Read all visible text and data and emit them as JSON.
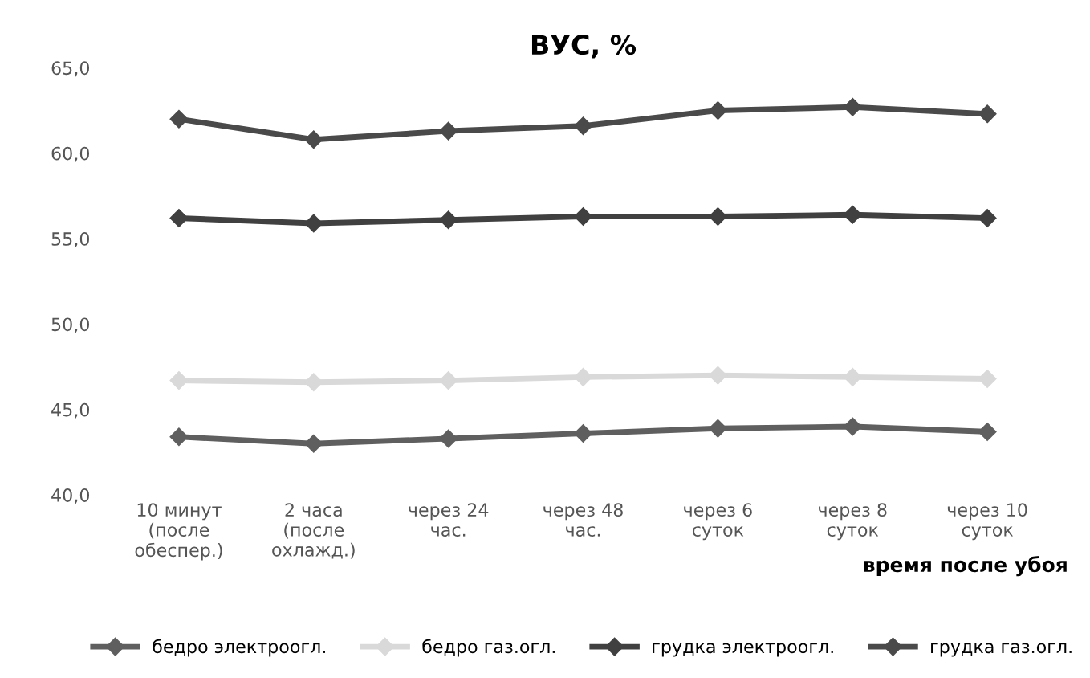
{
  "chart_data": {
    "type": "line",
    "title": "ВУС, %",
    "xlabel": "время после убоя",
    "categories": [
      "10 минут\n(после\nобеспер.)",
      "2 часа\n(после\nохлажд.)",
      "через 24\nчас.",
      "через 48\nчас.",
      "через 6\nсуток",
      "через 8\nсуток",
      "через 10\nсуток"
    ],
    "series": [
      {
        "name": "бедро электроогл.",
        "color": "#5f5f5f",
        "values": [
          43.4,
          43.0,
          43.3,
          43.6,
          43.9,
          44.0,
          43.7
        ]
      },
      {
        "name": "бедро газ.огл.",
        "color": "#d9d9d9",
        "values": [
          46.7,
          46.6,
          46.7,
          46.9,
          47.0,
          46.9,
          46.8
        ]
      },
      {
        "name": "грудка электроогл.",
        "color": "#404040",
        "values": [
          56.2,
          55.9,
          56.1,
          56.3,
          56.3,
          56.4,
          56.2
        ]
      },
      {
        "name": "грудка газ.огл.",
        "color": "#4a4a4a",
        "values": [
          62.0,
          60.8,
          61.3,
          61.6,
          62.5,
          62.7,
          62.3
        ]
      }
    ],
    "ylim": [
      40,
      65
    ],
    "yticks": [
      {
        "value": 40,
        "label": "40,0"
      },
      {
        "value": 45,
        "label": "45,0"
      },
      {
        "value": 50,
        "label": "50,0"
      },
      {
        "value": 55,
        "label": "55,0"
      },
      {
        "value": 60,
        "label": "60,0"
      },
      {
        "value": 65,
        "label": "65,0"
      }
    ],
    "grid": false,
    "legend": "bottom",
    "marker": "diamond",
    "line_style": "solid"
  }
}
